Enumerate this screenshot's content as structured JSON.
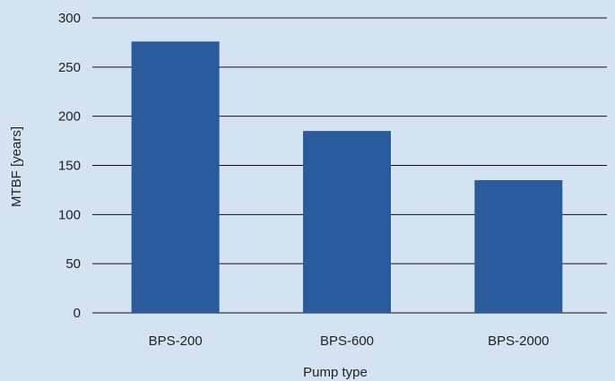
{
  "chart_data": {
    "type": "bar",
    "categories": [
      "BPS-200",
      "BPS-600",
      "BPS-2000"
    ],
    "values": [
      276,
      185,
      135
    ],
    "title": "",
    "xlabel": "Pump type",
    "ylabel": "MTBF [years]",
    "ylim": [
      0,
      300
    ],
    "yticks": [
      0,
      50,
      100,
      150,
      200,
      250,
      300
    ],
    "grid": true,
    "legend": "none",
    "colors": {
      "bar": "#2a5b9c",
      "background": "#d3e3f1",
      "grid": "#111111"
    }
  }
}
